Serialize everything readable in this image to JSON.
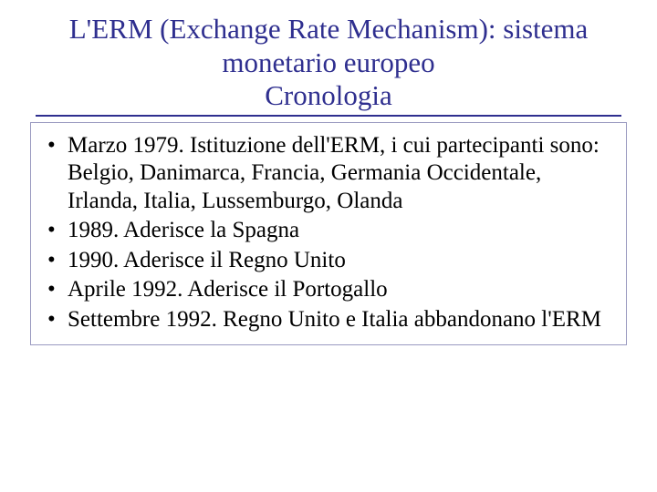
{
  "title_color": "#2f2f8f",
  "title_underline_color": "#2f2f8f",
  "body_border_color": "#9a9ac0",
  "body_text_color": "#000000",
  "background_color": "#ffffff",
  "title_lines": [
    "L'ERM (Exchange Rate Mechanism): sistema",
    "monetario europeo",
    "Cronologia"
  ],
  "bullets": [
    "Marzo 1979. Istituzione dell'ERM, i cui partecipanti sono: Belgio, Danimarca, Francia, Germania Occidentale, Irlanda, Italia, Lussemburgo, Olanda",
    "1989. Aderisce la Spagna",
    "1990. Aderisce il Regno Unito",
    "Aprile 1992. Aderisce il Portogallo",
    "Settembre 1992. Regno Unito e Italia abbandonano l'ERM"
  ]
}
